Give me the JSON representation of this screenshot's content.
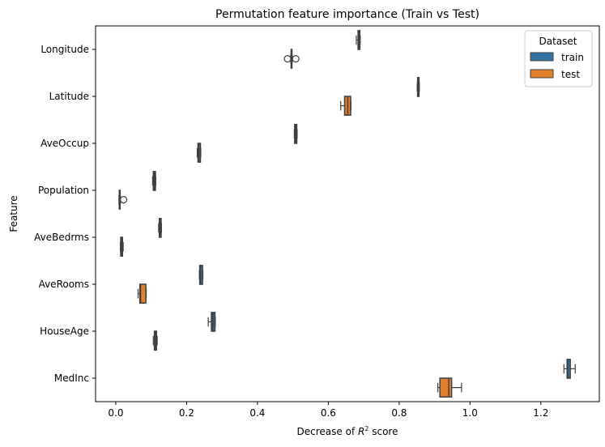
{
  "chart_data": {
    "type": "boxplot-horizontal",
    "title": "Permutation feature importance (Train vs Test)",
    "xlabel": "Decrease of R^2 score",
    "xlabel_parts": {
      "prefix": "Decrease of ",
      "var": "R",
      "sup": "2",
      "suffix": " score"
    },
    "ylabel": "Feature",
    "xlim": [
      -0.057,
      1.365
    ],
    "xticks": [
      0.0,
      0.2,
      0.4,
      0.6,
      0.8,
      1.0,
      1.2
    ],
    "xtick_labels": [
      "0.0",
      "0.2",
      "0.4",
      "0.6",
      "0.8",
      "1.0",
      "1.2"
    ],
    "grid": false,
    "legend": {
      "title": "Dataset",
      "position": "upper right",
      "entries": [
        "train",
        "test"
      ]
    },
    "series_colors": {
      "train": "#3274a1",
      "test": "#e1812c"
    },
    "categories": [
      "Longitude",
      "Latitude",
      "AveOccup",
      "Population",
      "AveBedrms",
      "AveRooms",
      "HouseAge",
      "MedInc"
    ],
    "series": [
      {
        "name": "train",
        "boxes": [
          {
            "feature": "Longitude",
            "whislo": 0.679,
            "q1": 0.684,
            "med": 0.686,
            "q3": 0.689,
            "whishi": 0.69,
            "fliers": []
          },
          {
            "feature": "Latitude",
            "whislo": 0.851,
            "q1": 0.852,
            "med": 0.854,
            "q3": 0.856,
            "whishi": 0.857,
            "fliers": []
          },
          {
            "feature": "AveOccup",
            "whislo": 0.504,
            "q1": 0.505,
            "med": 0.508,
            "q3": 0.511,
            "whishi": 0.512,
            "fliers": []
          },
          {
            "feature": "Population",
            "whislo": 0.104,
            "q1": 0.106,
            "med": 0.109,
            "q3": 0.112,
            "whishi": 0.113,
            "fliers": []
          },
          {
            "feature": "AveBedrms",
            "whislo": 0.121,
            "q1": 0.123,
            "med": 0.125,
            "q3": 0.128,
            "whishi": 0.129,
            "fliers": []
          },
          {
            "feature": "AveRooms",
            "whislo": 0.236,
            "q1": 0.237,
            "med": 0.239,
            "q3": 0.245,
            "whishi": 0.246,
            "fliers": []
          },
          {
            "feature": "HouseAge",
            "whislo": 0.261,
            "q1": 0.27,
            "med": 0.274,
            "q3": 0.28,
            "whishi": 0.281,
            "fliers": []
          },
          {
            "feature": "MedInc",
            "whislo": 1.265,
            "q1": 1.274,
            "med": 1.276,
            "q3": 1.283,
            "whishi": 1.297,
            "fliers": []
          }
        ]
      },
      {
        "name": "test",
        "boxes": [
          {
            "feature": "Longitude",
            "whislo": 0.494,
            "q1": 0.495,
            "med": 0.496,
            "q3": 0.497,
            "whishi": 0.498,
            "fliers": [
              0.485,
              0.508
            ]
          },
          {
            "feature": "Latitude",
            "whislo": 0.635,
            "q1": 0.646,
            "med": 0.655,
            "q3": 0.663,
            "whishi": 0.664,
            "fliers": []
          },
          {
            "feature": "AveOccup",
            "whislo": 0.23,
            "q1": 0.232,
            "med": 0.235,
            "q3": 0.239,
            "whishi": 0.24,
            "fliers": []
          },
          {
            "feature": "Population",
            "whislo": 0.009,
            "q1": 0.01,
            "med": 0.011,
            "q3": 0.012,
            "whishi": 0.013,
            "fliers": [
              0.022
            ]
          },
          {
            "feature": "AveBedrms",
            "whislo": 0.013,
            "q1": 0.014,
            "med": 0.016,
            "q3": 0.019,
            "whishi": 0.021,
            "fliers": []
          },
          {
            "feature": "AveRooms",
            "whislo": 0.063,
            "q1": 0.068,
            "med": 0.07,
            "q3": 0.085,
            "whishi": 0.086,
            "fliers": []
          },
          {
            "feature": "HouseAge",
            "whislo": 0.106,
            "q1": 0.109,
            "med": 0.112,
            "q3": 0.115,
            "whishi": 0.117,
            "fliers": []
          },
          {
            "feature": "MedInc",
            "whislo": 0.909,
            "q1": 0.915,
            "med": 0.94,
            "q3": 0.948,
            "whishi": 0.976,
            "fliers": []
          }
        ]
      }
    ]
  }
}
